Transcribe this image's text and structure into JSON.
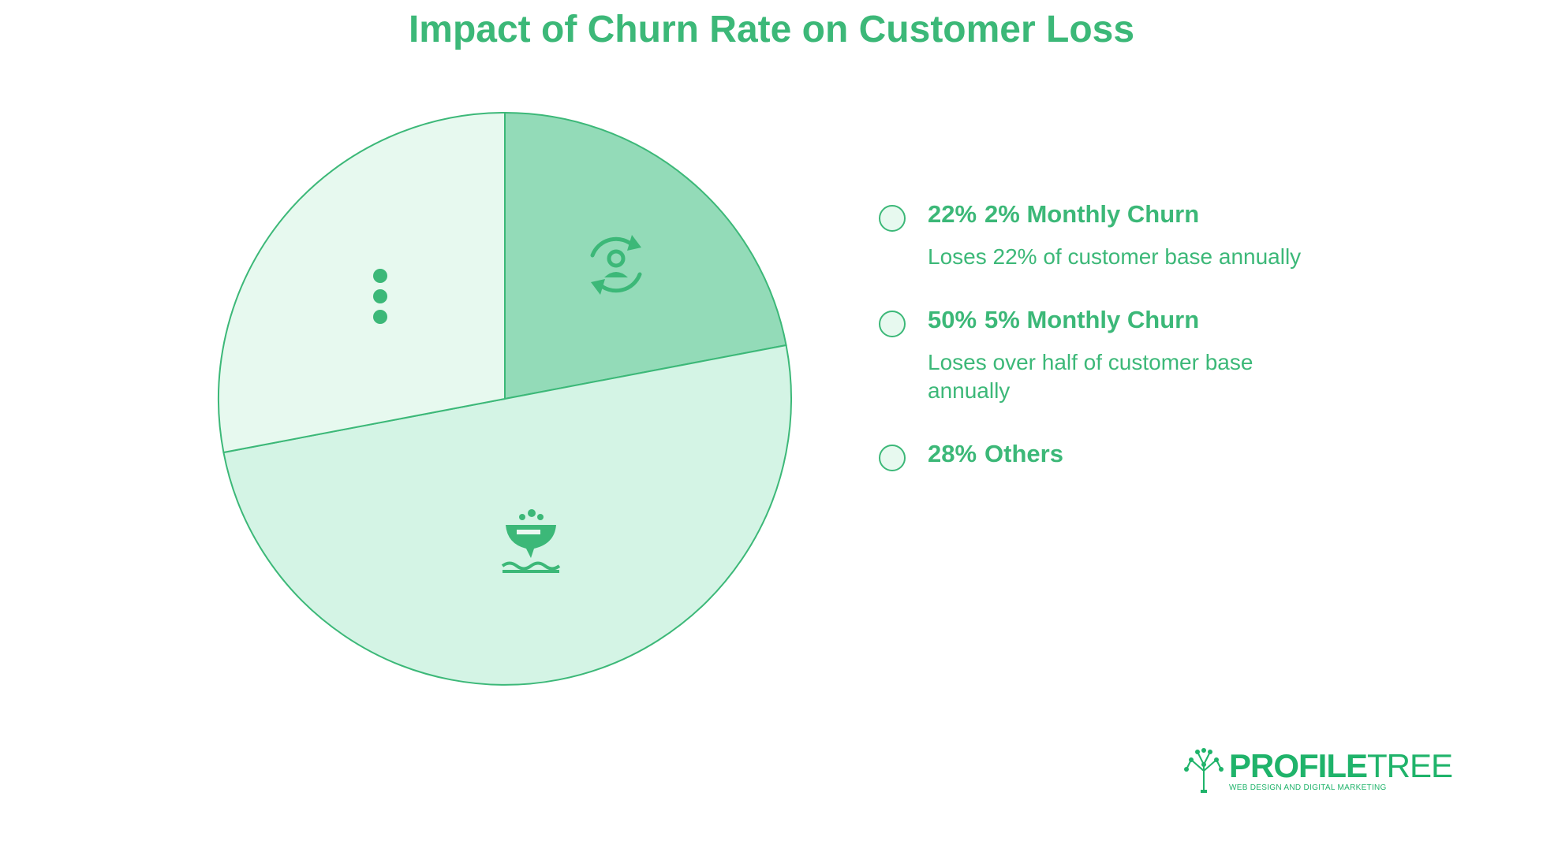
{
  "chart_data": {
    "type": "pie",
    "title": "Impact of Churn Rate on Customer Loss",
    "slices": [
      {
        "label": "2% Monthly Churn",
        "value": 22,
        "value_label": "22%",
        "description": "Loses 22% of customer base annually",
        "color": "#93dbb8",
        "icon": "user-cycle-icon"
      },
      {
        "label": "5% Monthly Churn",
        "value": 50,
        "value_label": "50%",
        "description": "Loses over half of customer base annually",
        "color": "#d4f4e5",
        "icon": "leaky-bowl-icon"
      },
      {
        "label": "Others",
        "value": 28,
        "value_label": "28%",
        "description": "",
        "color": "#e7f9ef",
        "icon": "more-vertical-icon"
      }
    ],
    "start_angle_deg": 0,
    "direction": "clockwise",
    "stroke_color": "#3cb878",
    "legend_position": "right"
  },
  "branding": {
    "logo_primary": "PROFILE",
    "logo_secondary": "TREE",
    "logo_tagline": "WEB DESIGN AND DIGITAL MARKETING",
    "logo_color": "#1fb36a"
  }
}
